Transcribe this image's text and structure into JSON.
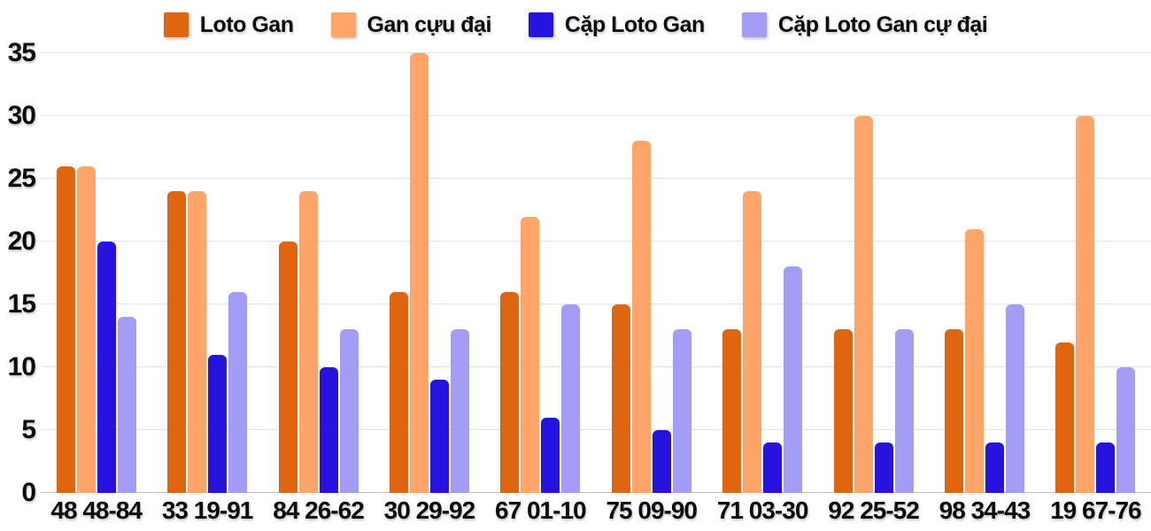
{
  "chart_data": {
    "type": "bar",
    "title": "",
    "xlabel": "",
    "ylabel": "",
    "ylim": [
      0,
      35
    ],
    "y_ticks": [
      0,
      5,
      10,
      15,
      20,
      25,
      30,
      35
    ],
    "grid": true,
    "legend_position": "top",
    "categories": [
      "48 48-84",
      "33 19-91",
      "84 26-62",
      "30 29-92",
      "67 01-10",
      "75 09-90",
      "71 03-30",
      "92 25-52",
      "98 34-43",
      "19 67-76"
    ],
    "series": [
      {
        "name": "Loto Gan",
        "color": "#e0650f",
        "values": [
          26,
          24,
          20,
          16,
          16,
          15,
          13,
          13,
          13,
          12
        ]
      },
      {
        "name": "Gan cựu đại",
        "color": "#ffa569",
        "values": [
          26,
          24,
          24,
          35,
          22,
          28,
          24,
          30,
          21,
          30
        ]
      },
      {
        "name": "Cặp Loto Gan",
        "color": "#2613df",
        "values": [
          20,
          11,
          10,
          9,
          6,
          5,
          4,
          4,
          4,
          4
        ]
      },
      {
        "name": "Cặp Loto Gan cự đại",
        "color": "#a49df6",
        "values": [
          14,
          16,
          13,
          13,
          15,
          13,
          18,
          13,
          15,
          10
        ]
      }
    ],
    "colors": {
      "gridline": "#e3e3e3",
      "baseline": "#bdbdbd",
      "text": "#0c0c0c",
      "background": "#ffffff"
    }
  }
}
